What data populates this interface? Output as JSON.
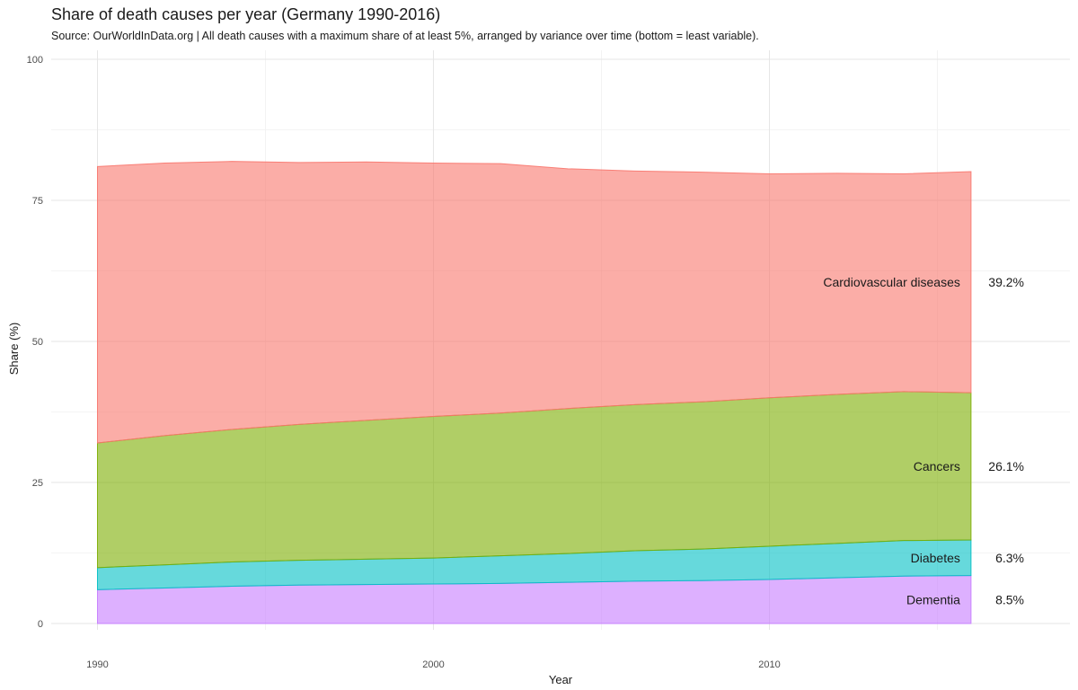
{
  "chart_data": {
    "type": "area",
    "stacked": true,
    "title": "Share of death causes per year (Germany 1990-2016)",
    "subtitle": "Source: OurWorldInData.org | All death causes with a maximum share of at least 5%, arranged by variance over time (bottom = least variable).",
    "xlabel": "Year",
    "ylabel": "Share (%)",
    "xlim": [
      1990,
      2016
    ],
    "ylim": [
      0,
      100
    ],
    "x_ticks": [
      1990,
      2000,
      2010
    ],
    "y_ticks": [
      0,
      25,
      50,
      75,
      100
    ],
    "grid": true,
    "legend": "direct labels at right",
    "x": [
      1990,
      1992,
      1994,
      1996,
      1998,
      2000,
      2002,
      2004,
      2006,
      2008,
      2010,
      2012,
      2014,
      2016
    ],
    "series": [
      {
        "name": "Dementia",
        "color": "#C77CFF",
        "end_label": "8.5%",
        "values": [
          6.0,
          6.3,
          6.6,
          6.8,
          6.9,
          7.0,
          7.1,
          7.3,
          7.5,
          7.6,
          7.8,
          8.1,
          8.4,
          8.5
        ]
      },
      {
        "name": "Diabetes",
        "color": "#00BFC4",
        "end_label": "6.3%",
        "values": [
          3.9,
          4.1,
          4.3,
          4.4,
          4.5,
          4.6,
          4.9,
          5.1,
          5.4,
          5.6,
          5.9,
          6.1,
          6.3,
          6.3
        ]
      },
      {
        "name": "Cancers",
        "color": "#7CAE00",
        "end_label": "26.1%",
        "values": [
          22.1,
          22.9,
          23.5,
          24.1,
          24.6,
          25.1,
          25.3,
          25.7,
          25.9,
          26.1,
          26.3,
          26.4,
          26.4,
          26.1
        ]
      },
      {
        "name": "Cardiovascular diseases",
        "color": "#F8766D",
        "end_label": "39.2%",
        "values": [
          49.0,
          48.3,
          47.5,
          46.4,
          45.8,
          44.9,
          44.2,
          42.5,
          41.4,
          40.7,
          39.7,
          39.2,
          38.6,
          39.2
        ]
      }
    ]
  }
}
